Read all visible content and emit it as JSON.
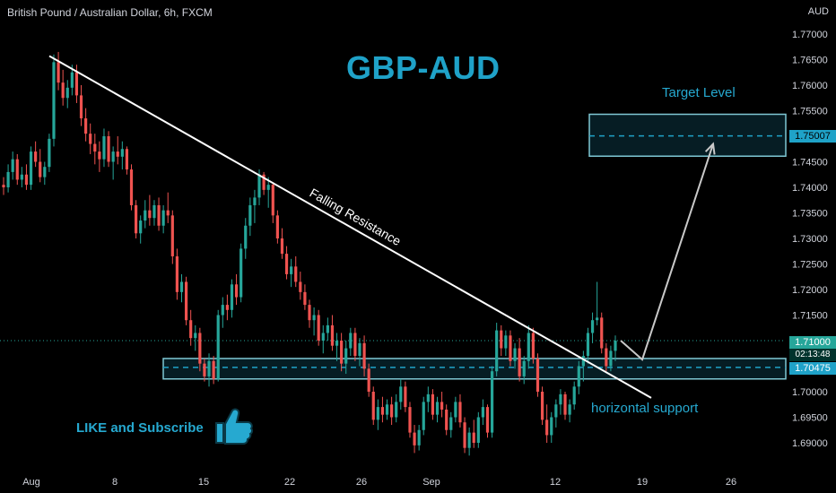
{
  "header": {
    "symbol_title": "British Pound / Australian Dollar, 6h, FXCM",
    "currency": "AUD"
  },
  "main_title": "GBP-AUD",
  "annotations": {
    "target_level": "Target Level",
    "horizontal_support": "horizontal support",
    "falling_resistance": "Falling Resistance",
    "like_subscribe": "LIKE and Subscribe"
  },
  "price_axis": {
    "labels": [
      "1.77000",
      "1.76500",
      "1.76000",
      "1.75500",
      "1.75000",
      "1.74500",
      "1.74000",
      "1.73500",
      "1.73000",
      "1.72500",
      "1.72000",
      "1.71500",
      "1.71000",
      "1.70500",
      "1.70000",
      "1.69500",
      "1.69000"
    ],
    "current_price": "1.71000",
    "countdown": "02:13:48",
    "support_level": "1.70475",
    "target_price": "1.75007"
  },
  "time_axis": {
    "labels": [
      "Aug",
      "8",
      "15",
      "22",
      "26",
      "Sep",
      "12",
      "19",
      "26"
    ]
  },
  "colors": {
    "bullish": "#26a69a",
    "bearish": "#ef5350",
    "accent": "#1fa2c8",
    "zone_border": "#7fc8d4"
  },
  "chart_data": {
    "type": "candlestick",
    "title": "GBP-AUD",
    "ylim": [
      1.6865,
      1.7745
    ],
    "support_zone": [
      1.7025,
      1.7065
    ],
    "support_level": 1.70475,
    "target_zone": [
      1.7461,
      1.7543
    ],
    "target_level": 1.75007,
    "current_price": 1.71,
    "falling_resistance": {
      "from": {
        "date": "Aug 3",
        "price": 1.7657
      },
      "to": {
        "date": "Sep 17",
        "price": 1.6988
      }
    },
    "projection": [
      {
        "date": "Sep 16",
        "price": 1.71
      },
      {
        "date": "Sep 18",
        "price": 1.7065
      },
      {
        "date": "Sep 24",
        "price": 1.7485
      }
    ],
    "candles": [
      [
        1.7405,
        1.742,
        1.7385,
        1.74
      ],
      [
        1.74,
        1.7445,
        1.739,
        1.743
      ],
      [
        1.743,
        1.747,
        1.7415,
        1.7455
      ],
      [
        1.7455,
        1.7465,
        1.7405,
        1.7415
      ],
      [
        1.7415,
        1.744,
        1.74,
        1.7425
      ],
      [
        1.7425,
        1.7445,
        1.7395,
        1.7405
      ],
      [
        1.7405,
        1.748,
        1.7395,
        1.747
      ],
      [
        1.747,
        1.749,
        1.744,
        1.745
      ],
      [
        1.745,
        1.7475,
        1.741,
        1.742
      ],
      [
        1.742,
        1.745,
        1.7405,
        1.744
      ],
      [
        1.744,
        1.7505,
        1.743,
        1.7495
      ],
      [
        1.7495,
        1.766,
        1.748,
        1.7645
      ],
      [
        1.7645,
        1.7665,
        1.759,
        1.7605
      ],
      [
        1.7605,
        1.763,
        1.756,
        1.7575
      ],
      [
        1.7575,
        1.761,
        1.7555,
        1.7595
      ],
      [
        1.7595,
        1.764,
        1.758,
        1.7625
      ],
      [
        1.7625,
        1.764,
        1.7565,
        1.758
      ],
      [
        1.758,
        1.76,
        1.752,
        1.7535
      ],
      [
        1.7535,
        1.7555,
        1.749,
        1.7505
      ],
      [
        1.7505,
        1.7525,
        1.7465,
        1.7485
      ],
      [
        1.7485,
        1.7505,
        1.7445,
        1.747
      ],
      [
        1.747,
        1.749,
        1.743,
        1.7455
      ],
      [
        1.7455,
        1.7515,
        1.744,
        1.75
      ],
      [
        1.75,
        1.751,
        1.744,
        1.745
      ],
      [
        1.745,
        1.748,
        1.7415,
        1.747
      ],
      [
        1.747,
        1.75,
        1.7445,
        1.746
      ],
      [
        1.746,
        1.749,
        1.7435,
        1.7475
      ],
      [
        1.7475,
        1.748,
        1.7425,
        1.7435
      ],
      [
        1.7435,
        1.7445,
        1.7355,
        1.7365
      ],
      [
        1.7365,
        1.7375,
        1.73,
        1.731
      ],
      [
        1.731,
        1.7345,
        1.729,
        1.7335
      ],
      [
        1.7335,
        1.7375,
        1.732,
        1.7355
      ],
      [
        1.7355,
        1.7385,
        1.7325,
        1.734
      ],
      [
        1.734,
        1.7375,
        1.7325,
        1.7365
      ],
      [
        1.7365,
        1.738,
        1.7315,
        1.7325
      ],
      [
        1.7325,
        1.7365,
        1.731,
        1.7355
      ],
      [
        1.7355,
        1.739,
        1.733,
        1.7345
      ],
      [
        1.7345,
        1.7355,
        1.725,
        1.7265
      ],
      [
        1.7265,
        1.728,
        1.718,
        1.7195
      ],
      [
        1.7195,
        1.723,
        1.7175,
        1.7215
      ],
      [
        1.7215,
        1.7225,
        1.713,
        1.714
      ],
      [
        1.714,
        1.716,
        1.709,
        1.7105
      ],
      [
        1.7105,
        1.713,
        1.708,
        1.7115
      ],
      [
        1.7115,
        1.7125,
        1.704,
        1.7055
      ],
      [
        1.7055,
        1.7065,
        1.702,
        1.703
      ],
      [
        1.703,
        1.7075,
        1.701,
        1.706
      ],
      [
        1.706,
        1.707,
        1.7015,
        1.7025
      ],
      [
        1.7025,
        1.716,
        1.702,
        1.715
      ],
      [
        1.715,
        1.7185,
        1.7125,
        1.717
      ],
      [
        1.717,
        1.719,
        1.714,
        1.716
      ],
      [
        1.716,
        1.722,
        1.7145,
        1.721
      ],
      [
        1.721,
        1.723,
        1.717,
        1.7185
      ],
      [
        1.7185,
        1.729,
        1.7175,
        1.728
      ],
      [
        1.728,
        1.734,
        1.726,
        1.7325
      ],
      [
        1.7325,
        1.738,
        1.7305,
        1.7365
      ],
      [
        1.7365,
        1.7395,
        1.733,
        1.738
      ],
      [
        1.738,
        1.7435,
        1.7365,
        1.7425
      ],
      [
        1.7425,
        1.743,
        1.7385,
        1.7395
      ],
      [
        1.7395,
        1.742,
        1.736,
        1.7405
      ],
      [
        1.7405,
        1.741,
        1.733,
        1.7345
      ],
      [
        1.7345,
        1.7355,
        1.729,
        1.73
      ],
      [
        1.73,
        1.732,
        1.726,
        1.727
      ],
      [
        1.727,
        1.7285,
        1.722,
        1.723
      ],
      [
        1.723,
        1.726,
        1.7205,
        1.7245
      ],
      [
        1.7245,
        1.7265,
        1.7205,
        1.7215
      ],
      [
        1.7215,
        1.7235,
        1.718,
        1.7195
      ],
      [
        1.7195,
        1.721,
        1.716,
        1.717
      ],
      [
        1.717,
        1.718,
        1.7125,
        1.714
      ],
      [
        1.714,
        1.7165,
        1.711,
        1.715
      ],
      [
        1.715,
        1.716,
        1.709,
        1.71
      ],
      [
        1.71,
        1.713,
        1.7075,
        1.7115
      ],
      [
        1.7115,
        1.7145,
        1.71,
        1.713
      ],
      [
        1.713,
        1.715,
        1.708,
        1.709
      ],
      [
        1.709,
        1.7115,
        1.706,
        1.71
      ],
      [
        1.71,
        1.7115,
        1.704,
        1.7055
      ],
      [
        1.7055,
        1.71,
        1.7035,
        1.7085
      ],
      [
        1.7085,
        1.7125,
        1.707,
        1.7115
      ],
      [
        1.7115,
        1.7125,
        1.706,
        1.707
      ],
      [
        1.707,
        1.7105,
        1.705,
        1.7095
      ],
      [
        1.7095,
        1.711,
        1.703,
        1.7045
      ],
      [
        1.7045,
        1.7055,
        1.699,
        1.7
      ],
      [
        1.7,
        1.701,
        1.6935,
        1.6945
      ],
      [
        1.6945,
        1.6985,
        1.6925,
        1.697
      ],
      [
        1.697,
        1.699,
        1.694,
        1.6955
      ],
      [
        1.6955,
        1.6985,
        1.6945,
        1.6975
      ],
      [
        1.6975,
        1.699,
        1.6935,
        1.695
      ],
      [
        1.695,
        1.6995,
        1.694,
        1.698
      ],
      [
        1.698,
        1.7025,
        1.6965,
        1.701
      ],
      [
        1.701,
        1.702,
        1.696,
        1.697
      ],
      [
        1.697,
        1.698,
        1.691,
        1.692
      ],
      [
        1.692,
        1.6935,
        1.688,
        1.6895
      ],
      [
        1.6895,
        1.6935,
        1.6885,
        1.6925
      ],
      [
        1.6925,
        1.699,
        1.6915,
        1.698
      ],
      [
        1.698,
        1.701,
        1.696,
        1.6995
      ],
      [
        1.6995,
        1.7005,
        1.6945,
        1.6955
      ],
      [
        1.6955,
        1.699,
        1.694,
        1.698
      ],
      [
        1.698,
        1.7,
        1.695,
        1.6965
      ],
      [
        1.6965,
        1.6975,
        1.6915,
        1.6925
      ],
      [
        1.6925,
        1.696,
        1.691,
        1.695
      ],
      [
        1.695,
        1.699,
        1.694,
        1.698
      ],
      [
        1.698,
        1.6995,
        1.693,
        1.694
      ],
      [
        1.694,
        1.695,
        1.688,
        1.689
      ],
      [
        1.689,
        1.693,
        1.6875,
        1.692
      ],
      [
        1.692,
        1.6945,
        1.689,
        1.69
      ],
      [
        1.69,
        1.696,
        1.689,
        1.695
      ],
      [
        1.695,
        1.6985,
        1.6935,
        1.697
      ],
      [
        1.697,
        1.6975,
        1.691,
        1.692
      ],
      [
        1.692,
        1.705,
        1.691,
        1.704
      ],
      [
        1.704,
        1.7135,
        1.703,
        1.712
      ],
      [
        1.712,
        1.713,
        1.707,
        1.7085
      ],
      [
        1.7085,
        1.712,
        1.707,
        1.711
      ],
      [
        1.711,
        1.712,
        1.705,
        1.706
      ],
      [
        1.706,
        1.7095,
        1.7045,
        1.7085
      ],
      [
        1.7085,
        1.7105,
        1.702,
        1.703
      ],
      [
        1.703,
        1.707,
        1.7015,
        1.706
      ],
      [
        1.706,
        1.713,
        1.7045,
        1.7115
      ],
      [
        1.7115,
        1.7125,
        1.7055,
        1.7065
      ],
      [
        1.7065,
        1.7075,
        1.699,
        1.7
      ],
      [
        1.7,
        1.701,
        1.6935,
        1.6945
      ],
      [
        1.6945,
        1.6975,
        1.69,
        1.6915
      ],
      [
        1.6915,
        1.696,
        1.69,
        1.695
      ],
      [
        1.695,
        1.6985,
        1.693,
        1.6975
      ],
      [
        1.6975,
        1.7005,
        1.6955,
        1.6995
      ],
      [
        1.6995,
        1.7,
        1.6945,
        1.6955
      ],
      [
        1.6955,
        1.6985,
        1.694,
        1.6975
      ],
      [
        1.6975,
        1.702,
        1.6965,
        1.701
      ],
      [
        1.701,
        1.706,
        1.6995,
        1.705
      ],
      [
        1.705,
        1.708,
        1.702,
        1.707
      ],
      [
        1.707,
        1.7125,
        1.7055,
        1.7115
      ],
      [
        1.7115,
        1.7155,
        1.7095,
        1.714
      ],
      [
        1.714,
        1.7215,
        1.713,
        1.7145
      ],
      [
        1.7145,
        1.7155,
        1.7075,
        1.7085
      ],
      [
        1.7085,
        1.7095,
        1.704,
        1.705
      ],
      [
        1.705,
        1.709,
        1.704,
        1.708
      ],
      [
        1.708,
        1.711,
        1.706,
        1.71
      ]
    ]
  }
}
